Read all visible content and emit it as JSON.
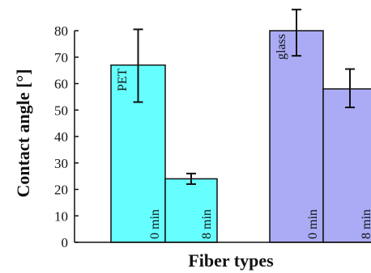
{
  "chart_data": {
    "type": "bar",
    "title": "",
    "xlabel": "Fiber types",
    "ylabel": "Contact angle [°]",
    "ylim": [
      0,
      80
    ],
    "yticks": [
      "0",
      "10",
      "20",
      "30",
      "40",
      "50",
      "60",
      "70",
      "80"
    ],
    "grid": false,
    "bars": [
      {
        "group": "PET",
        "condition": "0 min",
        "value": 67,
        "err_low": 53,
        "err_high": 80.5
      },
      {
        "group": "PET",
        "condition": "8 min",
        "value": 24,
        "err_low": 22,
        "err_high": 26
      },
      {
        "group": "glass",
        "condition": "0 min",
        "value": 80,
        "err_low": 70.5,
        "err_high": 88
      },
      {
        "group": "glass",
        "condition": "8 min",
        "value": 58,
        "err_low": 51,
        "err_high": 65.5
      }
    ],
    "colors": {
      "PET": "#66ffff",
      "glass": "#aaaaf5"
    }
  }
}
